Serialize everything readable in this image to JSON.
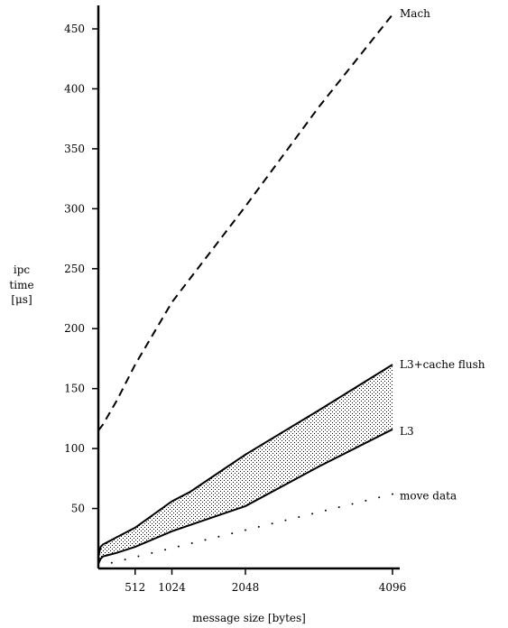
{
  "chart_data": {
    "type": "line",
    "xlabel": "message size [bytes]",
    "ylabel": [
      "ipc",
      "time",
      "[μs]"
    ],
    "xlim": [
      0,
      4096
    ],
    "ylim": [
      0,
      470
    ],
    "xticks": [
      512,
      1024,
      2048,
      4096
    ],
    "yticks": [
      50,
      100,
      150,
      200,
      250,
      300,
      350,
      400,
      450
    ],
    "grid": false,
    "legend": "inline labels at line ends",
    "shaded_band": {
      "between": [
        "L3",
        "L3+cache flush"
      ],
      "fill": "stippled"
    },
    "series": [
      {
        "name": "Mach",
        "style": "dashed",
        "x": [
          0,
          64,
          256,
          512,
          1024,
          2048,
          3072,
          4096
        ],
        "y": [
          115,
          120,
          140,
          170,
          222,
          302,
          385,
          462
        ]
      },
      {
        "name": "L3+cache flush",
        "style": "solid",
        "x": [
          0,
          32,
          64,
          128,
          256,
          512,
          1024,
          1280,
          2048,
          3072,
          4096
        ],
        "y": [
          10,
          18,
          20,
          22,
          26,
          34,
          56,
          64,
          95,
          132,
          170
        ]
      },
      {
        "name": "L3",
        "style": "solid",
        "x": [
          0,
          32,
          64,
          128,
          256,
          512,
          1024,
          2048,
          3072,
          4096
        ],
        "y": [
          4,
          8,
          10,
          11,
          13,
          18,
          31,
          52,
          85,
          116
        ]
      },
      {
        "name": "move data",
        "style": "dotted",
        "x": [
          0,
          4096
        ],
        "y": [
          2,
          62
        ]
      }
    ]
  }
}
